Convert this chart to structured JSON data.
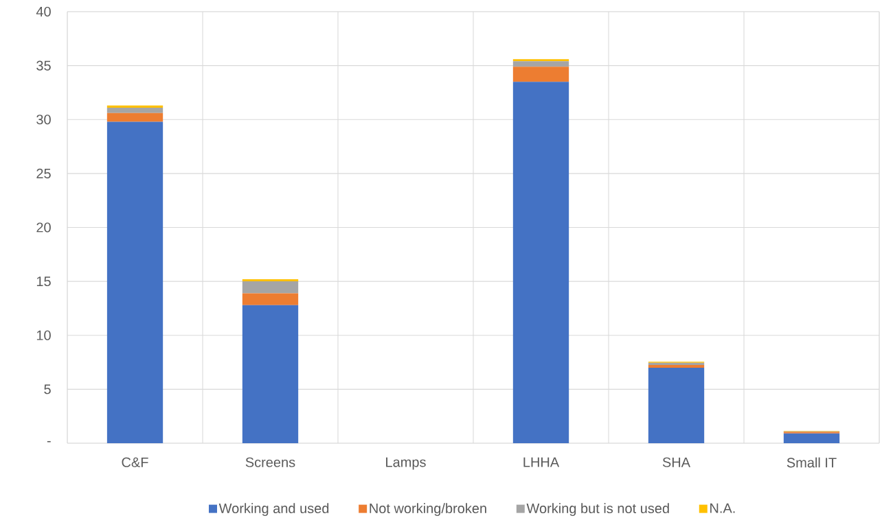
{
  "chart_data": {
    "type": "bar",
    "stacked": true,
    "categories": [
      "C&F",
      "Screens",
      "Lamps",
      "LHHA",
      "SHA",
      "Small IT"
    ],
    "series": [
      {
        "name": "Working and used",
        "color": "#4472c4",
        "values": [
          29.8,
          12.8,
          0,
          33.5,
          7.0,
          0.9
        ]
      },
      {
        "name": "Not working/broken",
        "color": "#ed7d31",
        "values": [
          0.8,
          1.1,
          0,
          1.4,
          0.25,
          0.15
        ]
      },
      {
        "name": "Working but is not used",
        "color": "#a5a5a5",
        "values": [
          0.5,
          1.1,
          0,
          0.5,
          0.2,
          0.05
        ]
      },
      {
        "name": "N.A.",
        "color": "#ffc000",
        "values": [
          0.2,
          0.2,
          0,
          0.2,
          0.1,
          0.05
        ]
      }
    ],
    "ylim": [
      0,
      40
    ],
    "yticks": [
      {
        "value": 0,
        "label": "-"
      },
      5,
      10,
      15,
      20,
      25,
      30,
      35,
      40
    ],
    "grid": true,
    "legend": "bottom"
  }
}
